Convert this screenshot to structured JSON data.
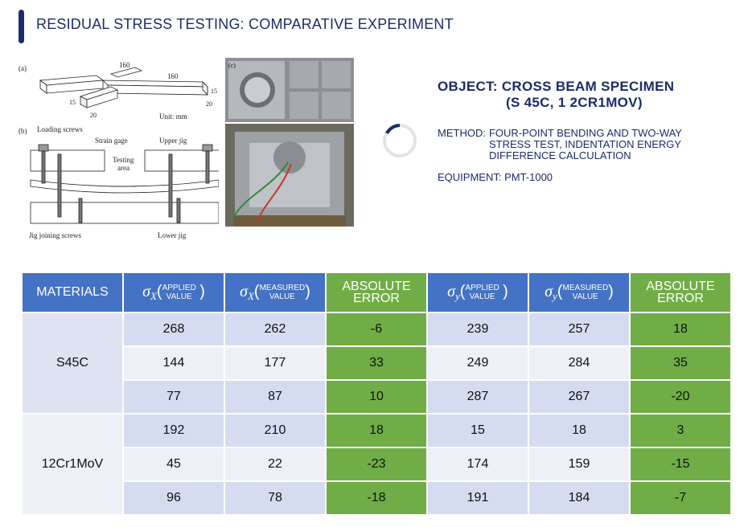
{
  "header": {
    "title": "RESIDUAL STRESS TESTING: COMPARATIVE EXPERIMENT"
  },
  "diagram": {
    "label_a": "(a)",
    "label_b": "(b)",
    "label_c": "(c)",
    "dim_160_left": "160",
    "dim_160_right": "160",
    "dim_15_left": "15",
    "dim_15_right": "15",
    "dim_20_left": "20",
    "dim_20_right": "20",
    "unit": "Unit: mm",
    "loading_screws": "Loading screws",
    "strain_gage": "Strain gage",
    "upper_jig": "Upper jig",
    "testing_area_1": "Testing",
    "testing_area_2": "area",
    "jig_joining": "Jig joining screws",
    "lower_jig": "Lower jig"
  },
  "info": {
    "object_line1": "OBJECT: CROSS BEAM SPECIMEN",
    "object_line2": "(S 45C, 1 2CR1MOV)",
    "method_label": "METHOD:",
    "method_line1": "FOUR-POINT BENDING AND TWO-WAY",
    "method_line2": "STRESS TEST, INDENTATION ENERGY",
    "method_line3": "DIFFERENCE  CALCULATION",
    "equipment": "EQUIPMENT: PMT-1000"
  },
  "table": {
    "h_materials": "MATERIALS",
    "sigma": "σ",
    "sub_x": "X",
    "sub_y": "y",
    "paren_open": "(",
    "paren_close": ")",
    "applied_1": "APPLIED",
    "applied_2": "VALUE",
    "measured_1": "MEASURED",
    "measured_2": "VALUE",
    "abs_1": "ABSOLUTE",
    "abs_2": "ERROR",
    "mat_s45c": "S45C",
    "mat_12cr": "12Cr1MoV",
    "rows": [
      [
        "268",
        "262",
        "-6",
        "239",
        "257",
        "18"
      ],
      [
        "144",
        "177",
        "33",
        "249",
        "284",
        "35"
      ],
      [
        "77",
        "87",
        "10",
        "287",
        "267",
        "-20"
      ],
      [
        "192",
        "210",
        "18",
        "15",
        "18",
        "3"
      ],
      [
        "45",
        "22",
        "-23",
        "174",
        "159",
        "-15"
      ],
      [
        "96",
        "78",
        "-18",
        "191",
        "184",
        "-7"
      ]
    ]
  }
}
